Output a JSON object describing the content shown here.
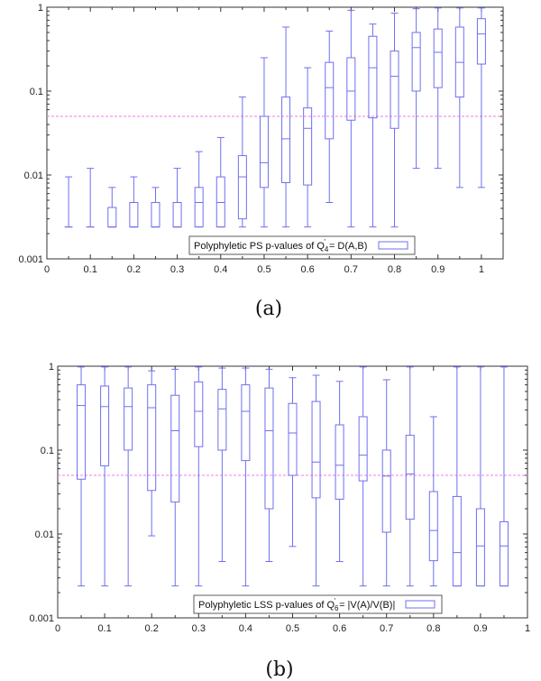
{
  "chart_data": [
    {
      "type": "box",
      "panel": "(a)",
      "legend": "Polyphyletic PS p-values of Q⁴' = D(A,B)",
      "legend_parts": {
        "prefix": "Polyphyletic PS p-values of Q",
        "sub": "4",
        "sup": "'",
        "suffix": " = D(A,B)"
      },
      "legend_position": "bottom-right",
      "y_scale": "log",
      "ylim": [
        0.001,
        1
      ],
      "xlim": [
        0,
        1.05
      ],
      "x_ticks": [
        0,
        0.1,
        0.2,
        0.3,
        0.4,
        0.5,
        0.6,
        0.7,
        0.8,
        0.9,
        1
      ],
      "x_tick_labels": [
        "0",
        "0.1",
        "0.2",
        "0.3",
        "0.4",
        "0.5",
        "0.6",
        "0.7",
        "0.8",
        "0.9",
        "1"
      ],
      "y_ticks": [
        0.001,
        0.01,
        0.1,
        1
      ],
      "y_tick_labels": [
        "0.001",
        "0.01",
        "0.1",
        "1"
      ],
      "reference_line": 0.05,
      "boxes": [
        {
          "x": 0.05,
          "min": 0.0024,
          "q1": 0.0024,
          "median": 0.0024,
          "q3": 0.0024,
          "max": 0.0095
        },
        {
          "x": 0.1,
          "min": 0.0024,
          "q1": 0.0024,
          "median": 0.0024,
          "q3": 0.0024,
          "max": 0.012
        },
        {
          "x": 0.15,
          "min": 0.0024,
          "q1": 0.0024,
          "median": 0.0024,
          "q3": 0.0041,
          "max": 0.0071
        },
        {
          "x": 0.2,
          "min": 0.0024,
          "q1": 0.0024,
          "median": 0.0024,
          "q3": 0.0047,
          "max": 0.0095
        },
        {
          "x": 0.25,
          "min": 0.0024,
          "q1": 0.0024,
          "median": 0.0024,
          "q3": 0.0047,
          "max": 0.0071
        },
        {
          "x": 0.3,
          "min": 0.0024,
          "q1": 0.0024,
          "median": 0.0024,
          "q3": 0.0047,
          "max": 0.012
        },
        {
          "x": 0.35,
          "min": 0.0024,
          "q1": 0.0024,
          "median": 0.0047,
          "q3": 0.0071,
          "max": 0.019
        },
        {
          "x": 0.4,
          "min": 0.0024,
          "q1": 0.0024,
          "median": 0.0047,
          "q3": 0.0095,
          "max": 0.028
        },
        {
          "x": 0.45,
          "min": 0.0024,
          "q1": 0.003,
          "median": 0.0095,
          "q3": 0.017,
          "max": 0.085
        },
        {
          "x": 0.5,
          "min": 0.0024,
          "q1": 0.0071,
          "median": 0.014,
          "q3": 0.05,
          "max": 0.25
        },
        {
          "x": 0.55,
          "min": 0.0024,
          "q1": 0.0081,
          "median": 0.027,
          "q3": 0.085,
          "max": 0.58
        },
        {
          "x": 0.6,
          "min": 0.0024,
          "q1": 0.0076,
          "median": 0.036,
          "q3": 0.063,
          "max": 0.19
        },
        {
          "x": 0.65,
          "min": 0.0047,
          "q1": 0.027,
          "median": 0.11,
          "q3": 0.22,
          "max": 0.52
        },
        {
          "x": 0.7,
          "min": 0.0024,
          "q1": 0.045,
          "median": 0.1,
          "q3": 0.25,
          "max": 0.92
        },
        {
          "x": 0.75,
          "min": 0.0024,
          "q1": 0.048,
          "median": 0.19,
          "q3": 0.45,
          "max": 0.63
        },
        {
          "x": 0.8,
          "min": 0.0024,
          "q1": 0.036,
          "median": 0.15,
          "q3": 0.3,
          "max": 0.85
        },
        {
          "x": 0.85,
          "min": 0.012,
          "q1": 0.1,
          "median": 0.33,
          "q3": 0.5,
          "max": 0.96
        },
        {
          "x": 0.9,
          "min": 0.012,
          "q1": 0.11,
          "median": 0.29,
          "q3": 0.55,
          "max": 0.98
        },
        {
          "x": 0.95,
          "min": 0.0071,
          "q1": 0.085,
          "median": 0.22,
          "q3": 0.58,
          "max": 0.98
        },
        {
          "x": 1.0,
          "min": 0.0071,
          "q1": 0.21,
          "median": 0.48,
          "q3": 0.73,
          "max": 0.98
        }
      ]
    },
    {
      "type": "box",
      "panel": "(b)",
      "legend": "Polyphyletic LSS p-values of Q₆' = |V(A)/V(B)|",
      "legend_parts": {
        "prefix": "Polyphyletic LSS p-values of Q",
        "sub": "6",
        "sup": "'",
        "suffix": " = |V(A)/V(B)|"
      },
      "legend_position": "bottom-right",
      "y_scale": "log",
      "ylim": [
        0.001,
        1
      ],
      "xlim": [
        0,
        1
      ],
      "x_ticks": [
        0,
        0.1,
        0.2,
        0.3,
        0.4,
        0.5,
        0.6,
        0.7,
        0.8,
        0.9,
        1
      ],
      "x_tick_labels": [
        "0",
        "0.1",
        "0.2",
        "0.3",
        "0.4",
        "0.5",
        "0.6",
        "0.7",
        "0.8",
        "0.9",
        "1"
      ],
      "y_ticks": [
        0.001,
        0.01,
        0.1,
        1
      ],
      "y_tick_labels": [
        "0.001",
        "0.01",
        "0.1",
        "1"
      ],
      "reference_line": 0.05,
      "boxes": [
        {
          "x": 0.05,
          "min": 0.0024,
          "q1": 0.045,
          "median": 0.34,
          "q3": 0.6,
          "max": 0.98
        },
        {
          "x": 0.1,
          "min": 0.0024,
          "q1": 0.065,
          "median": 0.33,
          "q3": 0.58,
          "max": 0.98
        },
        {
          "x": 0.15,
          "min": 0.0024,
          "q1": 0.1,
          "median": 0.33,
          "q3": 0.55,
          "max": 0.98
        },
        {
          "x": 0.2,
          "min": 0.0095,
          "q1": 0.033,
          "median": 0.32,
          "q3": 0.6,
          "max": 0.88
        },
        {
          "x": 0.25,
          "min": 0.0024,
          "q1": 0.024,
          "median": 0.17,
          "q3": 0.45,
          "max": 0.92
        },
        {
          "x": 0.3,
          "min": 0.0024,
          "q1": 0.11,
          "median": 0.29,
          "q3": 0.65,
          "max": 0.98
        },
        {
          "x": 0.35,
          "min": 0.0047,
          "q1": 0.1,
          "median": 0.31,
          "q3": 0.53,
          "max": 0.95
        },
        {
          "x": 0.4,
          "min": 0.0024,
          "q1": 0.075,
          "median": 0.29,
          "q3": 0.6,
          "max": 0.95
        },
        {
          "x": 0.45,
          "min": 0.0047,
          "q1": 0.02,
          "median": 0.17,
          "q3": 0.55,
          "max": 0.92
        },
        {
          "x": 0.5,
          "min": 0.0071,
          "q1": 0.05,
          "median": 0.16,
          "q3": 0.36,
          "max": 0.73
        },
        {
          "x": 0.55,
          "min": 0.0024,
          "q1": 0.027,
          "median": 0.072,
          "q3": 0.38,
          "max": 0.78
        },
        {
          "x": 0.6,
          "min": 0.0047,
          "q1": 0.026,
          "median": 0.066,
          "q3": 0.2,
          "max": 0.66
        },
        {
          "x": 0.65,
          "min": 0.0024,
          "q1": 0.043,
          "median": 0.087,
          "q3": 0.25,
          "max": 0.98
        },
        {
          "x": 0.7,
          "min": 0.0024,
          "q1": 0.0105,
          "median": 0.049,
          "q3": 0.1,
          "max": 0.69
        },
        {
          "x": 0.75,
          "min": 0.0024,
          "q1": 0.015,
          "median": 0.052,
          "q3": 0.15,
          "max": 0.98
        },
        {
          "x": 0.8,
          "min": 0.0024,
          "q1": 0.0048,
          "median": 0.011,
          "q3": 0.032,
          "max": 0.25
        },
        {
          "x": 0.85,
          "min": 0.0024,
          "q1": 0.0024,
          "median": 0.006,
          "q3": 0.028,
          "max": 0.98
        },
        {
          "x": 0.9,
          "min": 0.0024,
          "q1": 0.0024,
          "median": 0.0072,
          "q3": 0.02,
          "max": 0.98
        },
        {
          "x": 0.95,
          "min": 0.0024,
          "q1": 0.0024,
          "median": 0.0072,
          "q3": 0.014,
          "max": 0.98
        }
      ]
    }
  ],
  "colors": {
    "box": "#6f6ff0",
    "reference_line": "#f07ce8",
    "axis": "#333333"
  }
}
